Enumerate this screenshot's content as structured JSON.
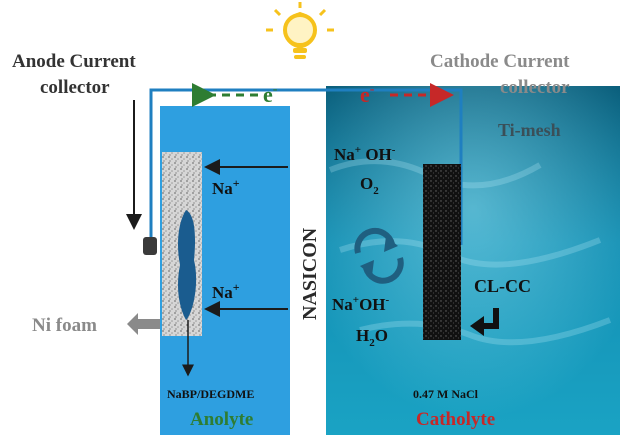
{
  "labels": {
    "anode_collector_line1": "Anode Current",
    "anode_collector_line2": "collector",
    "cathode_collector_line1": "Cathode Current",
    "cathode_collector_line2": "collector",
    "electron_left": "e",
    "electron_right": "e",
    "electron_superscript": "-",
    "ti_mesh": "Ti-mesh",
    "na_plus_upper": "Na",
    "na_plus_lower": "Na",
    "plus_sign": "+",
    "nasicon": "NASICON",
    "naoh_upper_na": "Na",
    "naoh_upper_oh": "OH",
    "o2": "O",
    "o2_subscript": "2",
    "naoh_lower_na": "Na",
    "naoh_lower_oh": "OH",
    "h2o_h": "H",
    "h2o_subscript": "2",
    "h2o_o": "O",
    "cl_cc": "CL-CC",
    "ni_foam": "Ni foam",
    "electrolyte_anode": "NaBP/DEGDME",
    "electrolyte_cathode": "0.47 M NaCl",
    "anolyte": "Anolyte",
    "catholyte": "Catholyte"
  },
  "icons": {
    "bulb": "lightbulb-icon",
    "cycle": "circular-arrows-icon",
    "turn_arrow": "hooked-arrow-icon",
    "ni_foam_arrow": "left-block-arrow-icon"
  },
  "colors": {
    "anolyte_blue": "#2e9fe0",
    "catholyte_teal": "#0e88a8",
    "green_label": "#2e7d32",
    "red_label": "#c62828",
    "wire": "#1f7fc0",
    "gray_label": "#8a8a8a",
    "bulb_yellow": "#f6c21c"
  }
}
